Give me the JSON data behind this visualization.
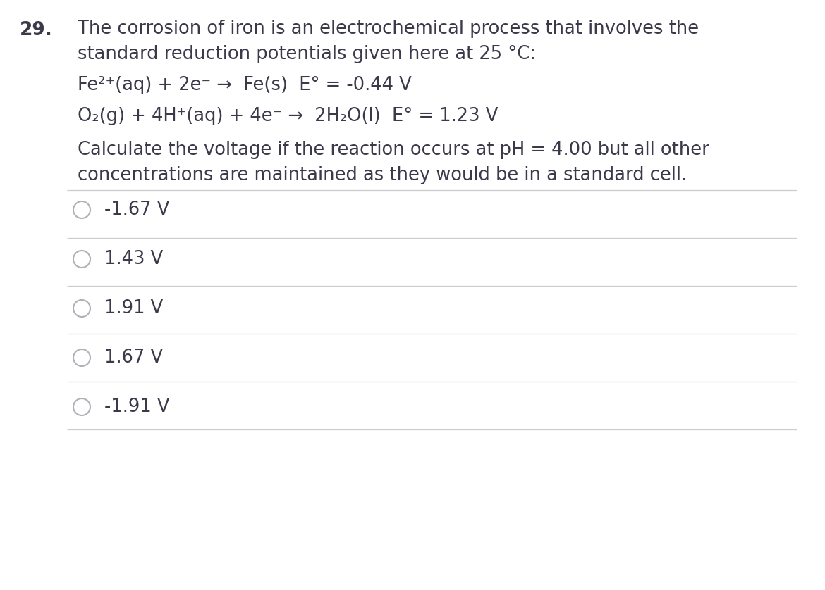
{
  "question_number": "29.",
  "background_color": "#ffffff",
  "text_color": "#3a3a4a",
  "line_color": "#cccccc",
  "question_text_line1": "The corrosion of iron is an electrochemical process that involves the",
  "question_text_line2": "standard reduction potentials given here at 25 °C:",
  "eq1": "Fe²⁺(aq) + 2e⁻ →  Fe(s)  E° = -0.44 V",
  "eq2": "O₂(g) + 4H⁺(aq) + 4e⁻ →  2H₂O(l)  E° = 1.23 V",
  "calc_line1": "Calculate the voltage if the reaction occurs at pH = 4.00 but all other",
  "calc_line2": "concentrations are maintained as they would be in a standard cell.",
  "choices": [
    "-1.67 V",
    "1.43 V",
    "1.91 V",
    "1.67 V",
    "-1.91 V"
  ],
  "font_size_question": 18.5,
  "font_size_eq": 18.5,
  "font_size_choices": 18.5,
  "font_size_number": 19.0,
  "fig_width": 11.7,
  "fig_height": 8.38,
  "dpi": 100
}
